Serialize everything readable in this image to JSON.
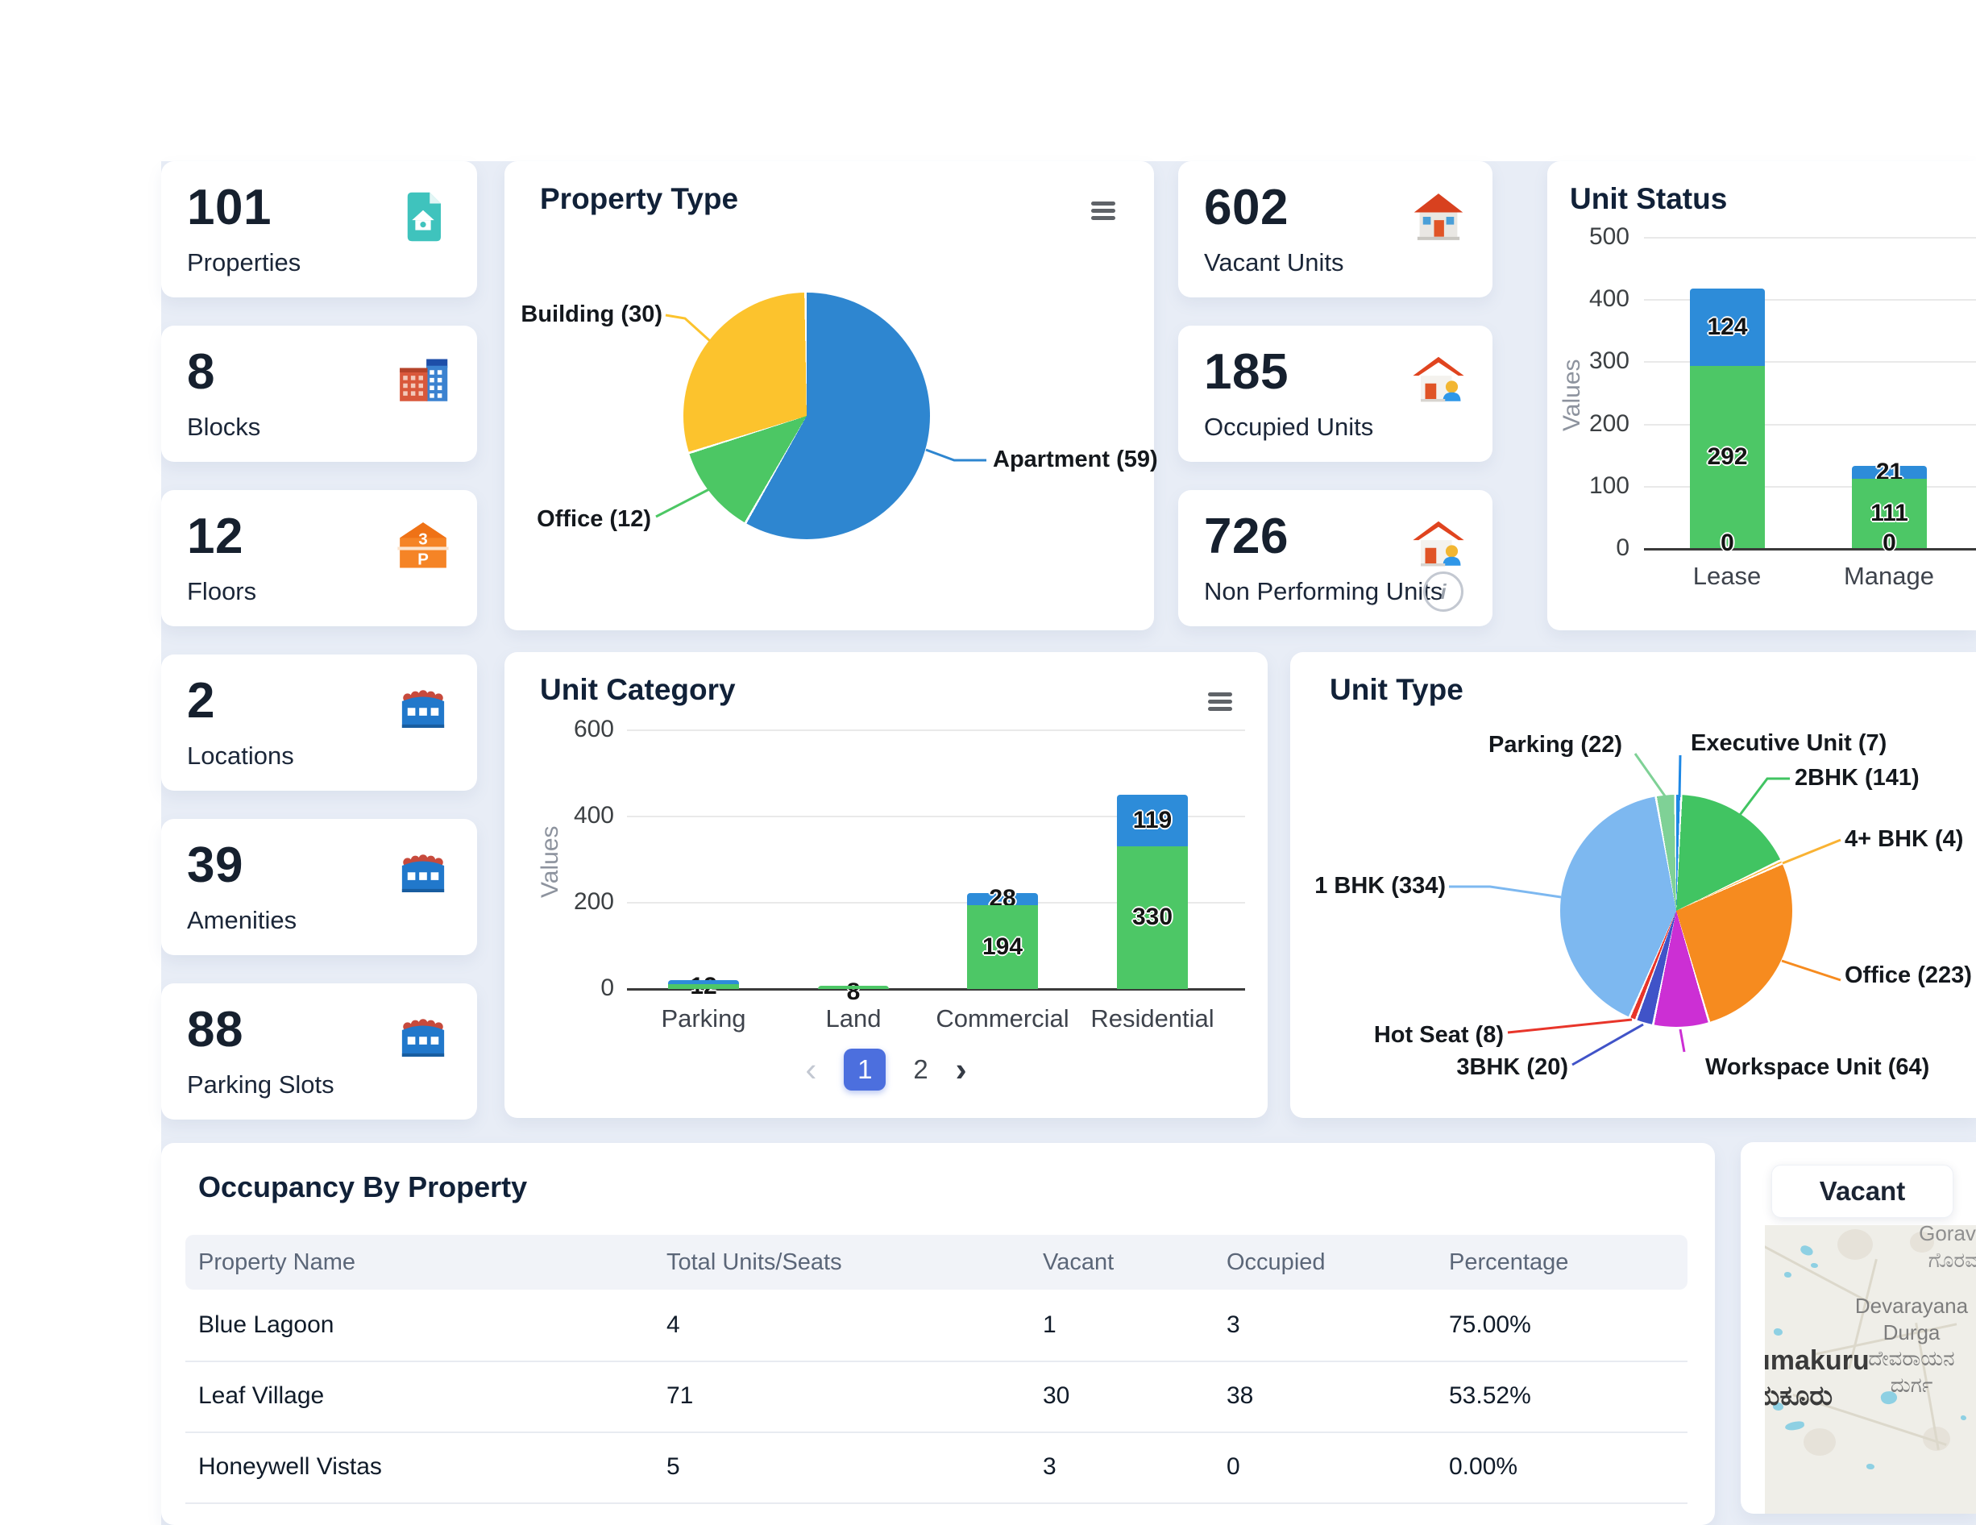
{
  "stat_cards_left": [
    {
      "value": "101",
      "label": "Properties"
    },
    {
      "value": "8",
      "label": "Blocks"
    },
    {
      "value": "12",
      "label": "Floors"
    },
    {
      "value": "2",
      "label": "Locations"
    },
    {
      "value": "39",
      "label": "Amenities"
    },
    {
      "value": "88",
      "label": "Parking Slots"
    }
  ],
  "stat_cards_right": [
    {
      "value": "602",
      "label": "Vacant Units"
    },
    {
      "value": "185",
      "label": "Occupied Units"
    },
    {
      "value": "726",
      "label": "Non Performing Units"
    }
  ],
  "chart_data": [
    {
      "type": "pie",
      "title": "Property Type",
      "slices": [
        {
          "label": "Apartment",
          "value": 59,
          "color": "#2e86d0"
        },
        {
          "label": "Office",
          "value": 12,
          "color": "#4cc764"
        },
        {
          "label": "Building",
          "value": 30,
          "color": "#fcc32d"
        }
      ],
      "display_labels": [
        "Apartment (59)",
        "Office (12)",
        "Building (30)"
      ],
      "legend_position": "outside-callouts"
    },
    {
      "type": "bar",
      "title": "Unit Status",
      "categories": [
        "Lease",
        "Manage"
      ],
      "ylabel": "Values",
      "ylim": [
        0,
        500
      ],
      "grid": true,
      "ticks": [
        "500",
        "400",
        "300",
        "200",
        "100",
        "0"
      ],
      "series": [
        {
          "name": "top-blue",
          "color": "#2d8cd9",
          "values": [
            124,
            21
          ]
        },
        {
          "name": "bottom-green",
          "color": "#4dc766",
          "values": [
            292,
            111
          ]
        },
        {
          "name": "zero",
          "color": null,
          "values": [
            0,
            0
          ]
        }
      ],
      "value_labels": {
        "lease": [
          "124",
          "292",
          "0"
        ],
        "manage": [
          "21",
          "111",
          "0"
        ]
      }
    },
    {
      "type": "bar",
      "title": "Unit Category",
      "categories": [
        "Parking",
        "Land",
        "Commercial",
        "Residential"
      ],
      "ylabel": "Values",
      "ylim": [
        0,
        600
      ],
      "grid": true,
      "ticks": [
        "600",
        "400",
        "200",
        "0"
      ],
      "series": [
        {
          "name": "top-blue",
          "color": "#2d8cd9",
          "values": [
            8,
            0,
            28,
            119
          ]
        },
        {
          "name": "bottom-green",
          "color": "#4dc766",
          "values": [
            12,
            8,
            194,
            330
          ]
        }
      ],
      "value_labels": {
        "parking": "12",
        "land": "8",
        "commercial": [
          "28",
          "194"
        ],
        "residential": [
          "119",
          "330"
        ]
      }
    },
    {
      "type": "pie",
      "title": "Unit Type",
      "slices": [
        {
          "label": "Executive Unit",
          "value": 7,
          "color": "#1e88e5"
        },
        {
          "label": "2BHK",
          "value": 141,
          "color": "#41c462"
        },
        {
          "label": "4+ BHK",
          "value": 4,
          "color": "#f9b233"
        },
        {
          "label": "Office",
          "value": 223,
          "color": "#f68b1f"
        },
        {
          "label": "Workspace Unit",
          "value": 64,
          "color": "#cc2fd4"
        },
        {
          "label": "3BHK",
          "value": 20,
          "color": "#4053c8"
        },
        {
          "label": "Hot Seat",
          "value": 8,
          "color": "#e8352a"
        },
        {
          "label": "1 BHK",
          "value": 334,
          "color": "#7db8f0"
        },
        {
          "label": "Parking",
          "value": 22,
          "color": "#7fd196"
        }
      ],
      "display_labels": [
        "Executive Unit (7)",
        "2BHK (141)",
        "4+ BHK (4)",
        "Office (223)",
        "Workspace Unit (64)",
        "3BHK (20)",
        "Hot Seat (8)",
        "1 BHK (334)",
        "Parking (22)"
      ],
      "legend_position": "outside-callouts"
    }
  ],
  "pagination": {
    "prev_icon": "‹",
    "pages": [
      "1",
      "2"
    ],
    "active_page": "1",
    "next_icon": "›"
  },
  "occupancy_table": {
    "title": "Occupancy By Property",
    "columns": [
      "Property Name",
      "Total Units/Seats",
      "Vacant",
      "Occupied",
      "Percentage"
    ],
    "rows": [
      [
        "Blue Lagoon",
        "4",
        "1",
        "3",
        "75.00%"
      ],
      [
        "Leaf Village",
        "71",
        "30",
        "38",
        "53.52%"
      ],
      [
        "Honeywell Vistas",
        "5",
        "3",
        "0",
        "0.00%"
      ]
    ]
  },
  "map_panel": {
    "button_label": "Vacant",
    "labels": {
      "top_right_en": "Goravan",
      "top_right_kn": "ಗೊರವನ",
      "center_en_1": "Devarayana",
      "center_en_2": "Durga",
      "center_kn_1": "ದೇವರಾಯನ",
      "center_kn_2": "ದುರ್ಗ",
      "left_en": "umakuru",
      "left_kn": "ಮಕೂರು"
    }
  },
  "colors": {
    "bar_green": "#4dc766",
    "bar_blue": "#2d8cd9",
    "pagination_active": "#4c6fde",
    "background_tint": "#e8edf6",
    "stat_number": "#16202e"
  }
}
